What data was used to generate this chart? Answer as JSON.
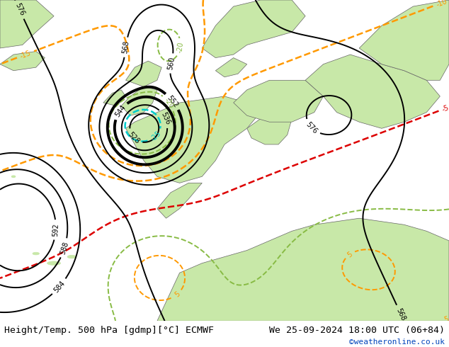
{
  "title_left": "Height/Temp. 500 hPa [gdmp][°C] ECMWF",
  "title_right": "We 25-09-2024 18:00 UTC (06+84)",
  "credit": "©weatheronline.co.uk",
  "ocean_color": "#d0d0d0",
  "land_color": "#c8e8a8",
  "land_color2": "#b8dc98",
  "mountain_color": "#b8b8b8",
  "height_color": "#000000",
  "temp_cyan_color": "#00cccc",
  "temp_orange_color": "#ff9900",
  "temp_red_color": "#dd0000",
  "temp_green_color": "#88bb44",
  "font_size_title": 9.5,
  "font_size_label": 7,
  "figsize": [
    6.34,
    4.9
  ],
  "dpi": 100
}
